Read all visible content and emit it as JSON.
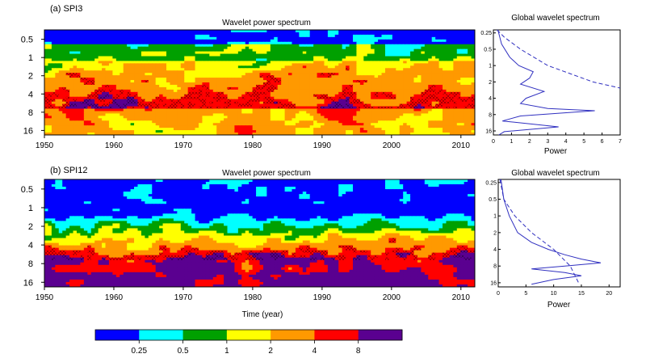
{
  "chart_data": [
    {
      "type": "heatmap",
      "panel_label": "(a) SPI3",
      "title": "Wavelet power spectrum",
      "xlabel": "",
      "x_ticks": [
        "1950",
        "1960",
        "1970",
        "1980",
        "1990",
        "2000",
        "2010"
      ],
      "xlim": [
        1950,
        2012
      ],
      "y_ticks": [
        "0.5",
        "1",
        "2",
        "4",
        "8",
        "16"
      ],
      "ylim": [
        0.35,
        19
      ],
      "y_scale": "log2",
      "y_inverted": true
    },
    {
      "type": "line",
      "title": "Global wavelet spectrum",
      "xlabel": "Power",
      "x_ticks": [
        "0",
        "1",
        "2",
        "3",
        "4",
        "5",
        "6",
        "7"
      ],
      "xlim": [
        0,
        7
      ],
      "y_ticks": [
        "0.25",
        "0.5",
        "1",
        "2",
        "4",
        "8",
        "16"
      ],
      "ylim": [
        0.22,
        19
      ],
      "y_scale": "log2",
      "series": [
        {
          "style": "solid",
          "color": "#3030c0",
          "x": [
            0.25,
            0.45,
            0.9,
            1.4,
            2.2,
            2.0,
            1.5,
            2.8,
            1.8,
            1.5,
            3.0,
            5.6,
            1.5,
            0.5,
            3.6,
            0.6,
            0.3
          ],
          "y": [
            0.22,
            0.4,
            0.7,
            1.0,
            1.3,
            1.7,
            2.2,
            3.0,
            4.0,
            5.0,
            6.2,
            6.8,
            8.5,
            10.5,
            13.5,
            16.5,
            19
          ]
        },
        {
          "style": "dashed",
          "color": "#3030c0",
          "x": [
            0.2,
            0.6,
            1.5,
            3.0,
            5.5,
            7.0
          ],
          "y": [
            0.22,
            0.3,
            0.5,
            1.0,
            2.0,
            2.6
          ]
        }
      ]
    },
    {
      "type": "heatmap",
      "panel_label": "(b) SPI12",
      "title": "Wavelet power spectrum",
      "xlabel": "Time (year)",
      "x_ticks": [
        "1950",
        "1960",
        "1970",
        "1980",
        "1990",
        "2000",
        "2010"
      ],
      "xlim": [
        1950,
        2012
      ],
      "y_ticks": [
        "0.5",
        "1",
        "2",
        "4",
        "8",
        "16"
      ],
      "ylim": [
        0.35,
        19
      ],
      "y_scale": "log2",
      "y_inverted": true
    },
    {
      "type": "line",
      "title": "Global wavelet spectrum",
      "xlabel": "Power",
      "x_ticks": [
        "0",
        "5",
        "10",
        "15",
        "20"
      ],
      "xlim": [
        0,
        22
      ],
      "y_ticks": [
        "0.25",
        "0.5",
        "1",
        "2",
        "4",
        "8",
        "16"
      ],
      "ylim": [
        0.22,
        19
      ],
      "y_scale": "log2",
      "series": [
        {
          "style": "solid",
          "color": "#3030c0",
          "x": [
            0.5,
            1.0,
            2.0,
            3.5,
            6.0,
            9.0,
            12.0,
            15.0,
            18.5,
            12.0,
            6.0,
            12.0,
            15.0,
            10.0,
            6.0
          ],
          "y": [
            0.22,
            0.5,
            1.0,
            2.0,
            3.0,
            4.0,
            5.0,
            6.0,
            7.0,
            8.0,
            9.0,
            10.5,
            12.0,
            14.0,
            17.0
          ]
        },
        {
          "style": "dashed",
          "color": "#3030c0",
          "x": [
            0.3,
            1.0,
            3.0,
            6.0,
            10.0,
            13.0,
            14.5
          ],
          "y": [
            0.22,
            0.5,
            1.0,
            2.0,
            4.0,
            8.0,
            16.0
          ]
        }
      ]
    }
  ],
  "colorbar": {
    "colors": [
      "#0000ff",
      "#00ffff",
      "#00a000",
      "#ffff00",
      "#ff9900",
      "#ff0000",
      "#5a0090"
    ],
    "labels": [
      "0.25",
      "0.5",
      "1",
      "2",
      "4",
      "8"
    ]
  }
}
